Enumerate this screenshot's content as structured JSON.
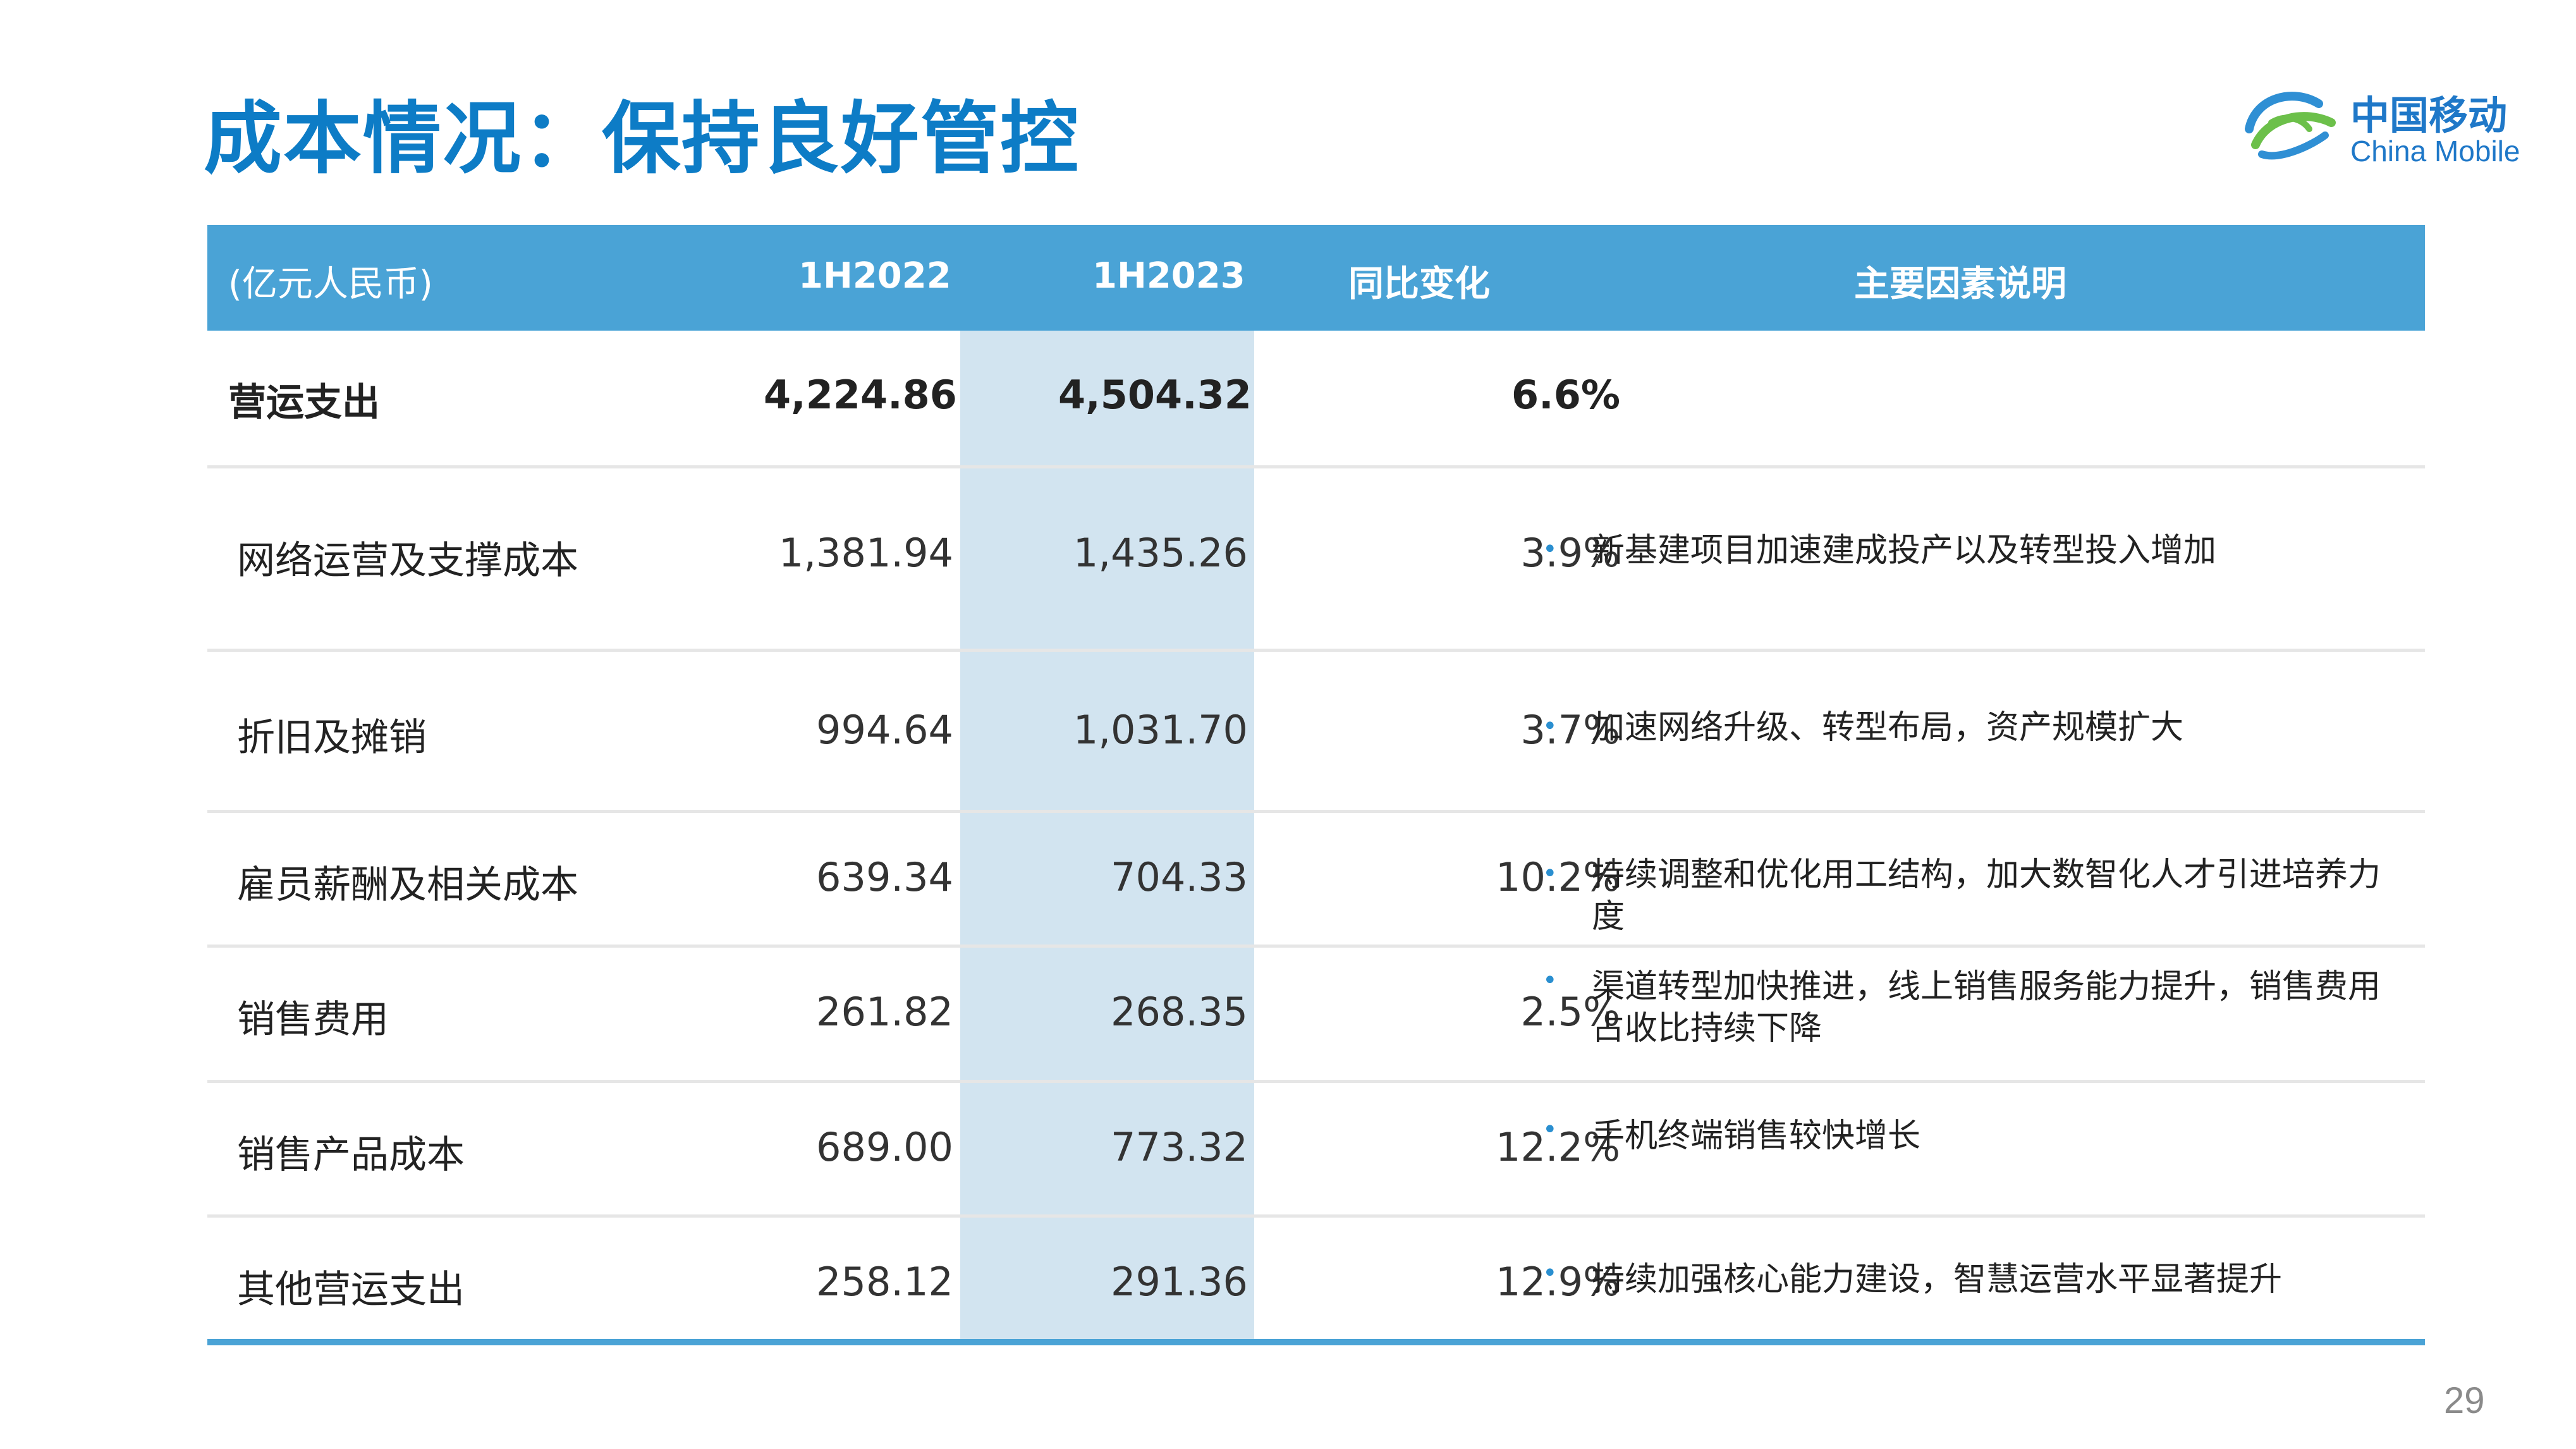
{
  "title": "成本情况：保持良好管控",
  "logo": {
    "cn": "中国移动",
    "en": "China Mobile",
    "icon": "china-mobile-logo-icon"
  },
  "table": {
    "headers": {
      "unit": "(亿元人民币)",
      "col1": "1H2022",
      "col2": "1H2023",
      "col3": "同比变化",
      "col4": "主要因素说明"
    },
    "total": {
      "label": "营运支出",
      "v2022": "4,224.86",
      "v2023": "4,504.32",
      "yoy": "6.6%"
    },
    "rows": [
      {
        "label": "网络运营及支撑成本",
        "v2022": "1,381.94",
        "v2023": "1,435.26",
        "yoy": "3.9%",
        "note": "新基建项目加速建成投产以及转型投入增加"
      },
      {
        "label": "折旧及摊销",
        "v2022": "994.64",
        "v2023": "1,031.70",
        "yoy": "3.7%",
        "note": "加速网络升级、转型布局，资产规模扩大"
      },
      {
        "label": "雇员薪酬及相关成本",
        "v2022": "639.34",
        "v2023": "704.33",
        "yoy": "10.2%",
        "note": "持续调整和优化用工结构，加大数智化人才引进培养力度"
      },
      {
        "label": "销售费用",
        "v2022": "261.82",
        "v2023": "268.35",
        "yoy": "2.5%",
        "note": "渠道转型加快推进，线上销售服务能力提升，销售费用占收比持续下降"
      },
      {
        "label": "销售产品成本",
        "v2022": "689.00",
        "v2023": "773.32",
        "yoy": "12.2%",
        "note": "手机终端销售较快增长"
      },
      {
        "label": "其他营运支出",
        "v2022": "258.12",
        "v2023": "291.36",
        "yoy": "12.9%",
        "note": "持续加强核心能力建设，智慧运营水平显著提升"
      }
    ],
    "bullet": "•"
  },
  "colors": {
    "title": "#0d7cc6",
    "header": "#4aa3d6",
    "highlight": "#d2e4f0"
  },
  "page_number": "29"
}
